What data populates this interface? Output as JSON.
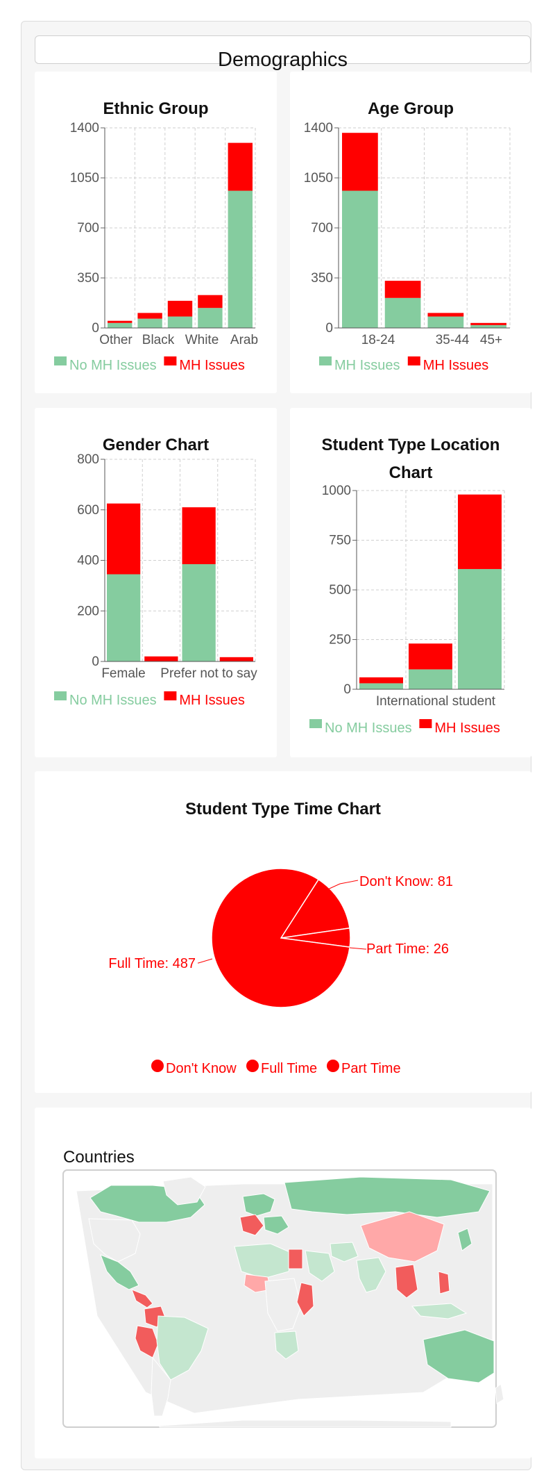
{
  "header": {
    "title": "Demographics"
  },
  "colors": {
    "no_mh": "#85cc9f",
    "mh": "#ff0000",
    "map_ocean": "#ffffff",
    "map_land": "#eeeeee",
    "map_green": "#85cc9f",
    "map_green_light": "#c4e6cf",
    "map_red": "#f25c5c",
    "map_red_light": "#ffa8a8"
  },
  "chart_data": [
    {
      "type": "bar",
      "stacked": true,
      "title": "Ethnic Group",
      "categories": [
        "Other",
        "Black",
        "",
        "White",
        "Arab"
      ],
      "tick_labels": [
        "Other",
        "Black",
        "White",
        "Arab"
      ],
      "ylim": [
        0,
        1400
      ],
      "yticks": [
        0,
        350,
        700,
        1050,
        1400
      ],
      "grid": true,
      "legend": "bottom",
      "series": [
        {
          "name": "No MH Issues",
          "color": "#85cc9f",
          "values": [
            35,
            65,
            80,
            140,
            960
          ]
        },
        {
          "name": "MH Issues",
          "color": "#ff0000",
          "values": [
            15,
            40,
            110,
            90,
            335
          ]
        }
      ]
    },
    {
      "type": "bar",
      "stacked": true,
      "title": "Age Group",
      "categories": [
        "18-24",
        "",
        "35-44",
        "45+"
      ],
      "tick_labels": [
        "18-24",
        "35-44",
        "45+"
      ],
      "ylim": [
        0,
        1400
      ],
      "yticks": [
        0,
        350,
        700,
        1050,
        1400
      ],
      "grid": true,
      "legend": "bottom",
      "series": [
        {
          "name": "MH Issues",
          "color": "#85cc9f",
          "values": [
            960,
            210,
            80,
            20
          ]
        },
        {
          "name": "MH Issues",
          "color": "#ff0000",
          "values": [
            405,
            120,
            25,
            15
          ]
        }
      ]
    },
    {
      "type": "bar",
      "stacked": true,
      "title": "Gender Chart",
      "categories": [
        "Female",
        "",
        "Prefer not to say",
        ""
      ],
      "tick_labels": [
        "Female",
        "Prefer not to say"
      ],
      "ylim": [
        0,
        800
      ],
      "yticks": [
        0,
        200,
        400,
        600,
        800
      ],
      "grid": true,
      "legend": "bottom",
      "series": [
        {
          "name": "No MH Issues",
          "color": "#85cc9f",
          "values": [
            345,
            0,
            385,
            0
          ]
        },
        {
          "name": "MH Issues",
          "color": "#ff0000",
          "values": [
            280,
            20,
            225,
            17
          ]
        }
      ]
    },
    {
      "type": "bar",
      "stacked": true,
      "title": "Student Type Location Chart",
      "categories": [
        "",
        "International student",
        ""
      ],
      "tick_labels": [
        "International student"
      ],
      "ylim": [
        0,
        1000
      ],
      "yticks": [
        0,
        250,
        500,
        750,
        1000
      ],
      "grid": true,
      "legend": "bottom",
      "series": [
        {
          "name": "No MH Issues",
          "color": "#85cc9f",
          "values": [
            30,
            100,
            605
          ]
        },
        {
          "name": "MH Issues",
          "color": "#ff0000",
          "values": [
            30,
            130,
            375
          ]
        }
      ]
    },
    {
      "type": "pie",
      "title": "Student Type Time Chart",
      "legend": "bottom",
      "slices": [
        {
          "label": "Don't Know",
          "value": 81,
          "color": "#ff0000"
        },
        {
          "label": "Full Time",
          "value": 487,
          "color": "#ff0000"
        },
        {
          "label": "Part Time",
          "value": 26,
          "color": "#ff0000"
        }
      ],
      "slice_labels": [
        "Don't Know: 81",
        "Full Time: 487",
        "Part Time: 26"
      ]
    }
  ],
  "map": {
    "title": "Countries"
  }
}
